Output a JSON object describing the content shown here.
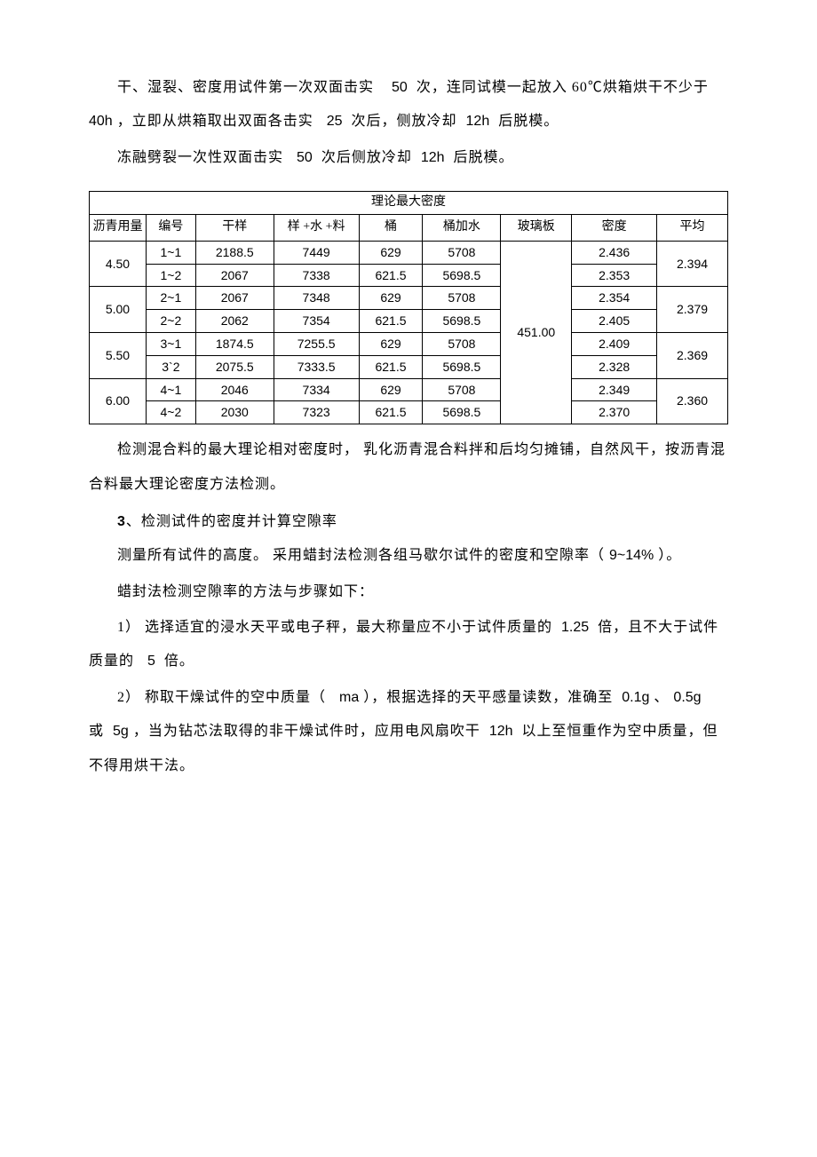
{
  "paragraphs": {
    "p1_a": "干、湿裂、密度用试件第一次双面击实",
    "p1_n1": "50",
    "p1_b": "次，连同试模一起放入 60℃烘箱烘干不少于",
    "p1_n2": "40h",
    "p1_c": "，立即从烘箱取出双面各击实",
    "p1_n3": "25",
    "p1_d": "次后，侧放冷却",
    "p1_n4": "12h",
    "p1_e": "后脱模。",
    "p2_a": "冻融劈裂一次性双面击实",
    "p2_n1": "50",
    "p2_b": "次后侧放冷却",
    "p2_n2": "12h",
    "p2_c": "后脱模。",
    "p3": "检测混合料的最大理论相对密度时，  乳化沥青混合料拌和后均匀摊铺，自然风干，按沥青混合料最大理论密度方法检测。",
    "h3_num": "3",
    "h3_txt": "、检测试件的密度并计算空隙率",
    "p4_a": "测量所有试件的高度。 采用蜡封法检测各组马歇尔试件的密度和空隙率（",
    "p4_n1": "9~14%",
    "p4_b": "）。",
    "p5": "蜡封法检测空隙率的方法与步骤如下：",
    "p6_a": "1）   选择适宜的浸水天平或电子秤，最大称量应不小于试件质量的",
    "p6_n1": "1.25",
    "p6_b": "倍，且不大于试件质量的",
    "p6_n2": "5",
    "p6_c": "倍。",
    "p7_a": "2）   称取干燥试件的空中质量（",
    "p7_n1": "ma",
    "p7_b": "），根据选择的天平感量读数，准确至",
    "p7_n2": "0.1g",
    "p7_c": "、",
    "p7_n3": "0.5g",
    "p7_d": "或",
    "p7_n4": "5g",
    "p7_e": "，当为钻芯法取得的非干燥试件时，应用电风扇吹干",
    "p7_n5": "12h",
    "p7_f": "以上至恒重作为空中质量，但不得用烘干法。"
  },
  "table": {
    "title": "理论最大密度",
    "headers": [
      "沥青用量",
      "编号",
      "干样",
      "样 +水 +料",
      "桶",
      "桶加水",
      "玻璃板",
      "密度",
      "平均"
    ],
    "glass_value": "451.00",
    "groups": [
      {
        "usage": "4.50",
        "avg": "2.394",
        "rows": [
          {
            "id": "1~1",
            "dry": "2188.5",
            "swm": "7449",
            "bucket": "629",
            "bw": "5708",
            "density": "2.436"
          },
          {
            "id": "1~2",
            "dry": "2067",
            "swm": "7338",
            "bucket": "621.5",
            "bw": "5698.5",
            "density": "2.353"
          }
        ]
      },
      {
        "usage": "5.00",
        "avg": "2.379",
        "rows": [
          {
            "id": "2~1",
            "dry": "2067",
            "swm": "7348",
            "bucket": "629",
            "bw": "5708",
            "density": "2.354"
          },
          {
            "id": "2~2",
            "dry": "2062",
            "swm": "7354",
            "bucket": "621.5",
            "bw": "5698.5",
            "density": "2.405"
          }
        ]
      },
      {
        "usage": "5.50",
        "avg": "2.369",
        "rows": [
          {
            "id": "3~1",
            "dry": "1874.5",
            "swm": "7255.5",
            "bucket": "629",
            "bw": "5708",
            "density": "2.409"
          },
          {
            "id": "3`2",
            "dry": "2075.5",
            "swm": "7333.5",
            "bucket": "621.5",
            "bw": "5698.5",
            "density": "2.328"
          }
        ]
      },
      {
        "usage": "6.00",
        "avg": "2.360",
        "rows": [
          {
            "id": "4~1",
            "dry": "2046",
            "swm": "7334",
            "bucket": "629",
            "bw": "5708",
            "density": "2.349"
          },
          {
            "id": "4~2",
            "dry": "2030",
            "swm": "7323",
            "bucket": "621.5",
            "bw": "5698.5",
            "density": "2.370"
          }
        ]
      }
    ],
    "col_widths_pct": [
      8,
      7,
      11,
      12,
      9,
      11,
      10,
      12,
      10
    ]
  }
}
